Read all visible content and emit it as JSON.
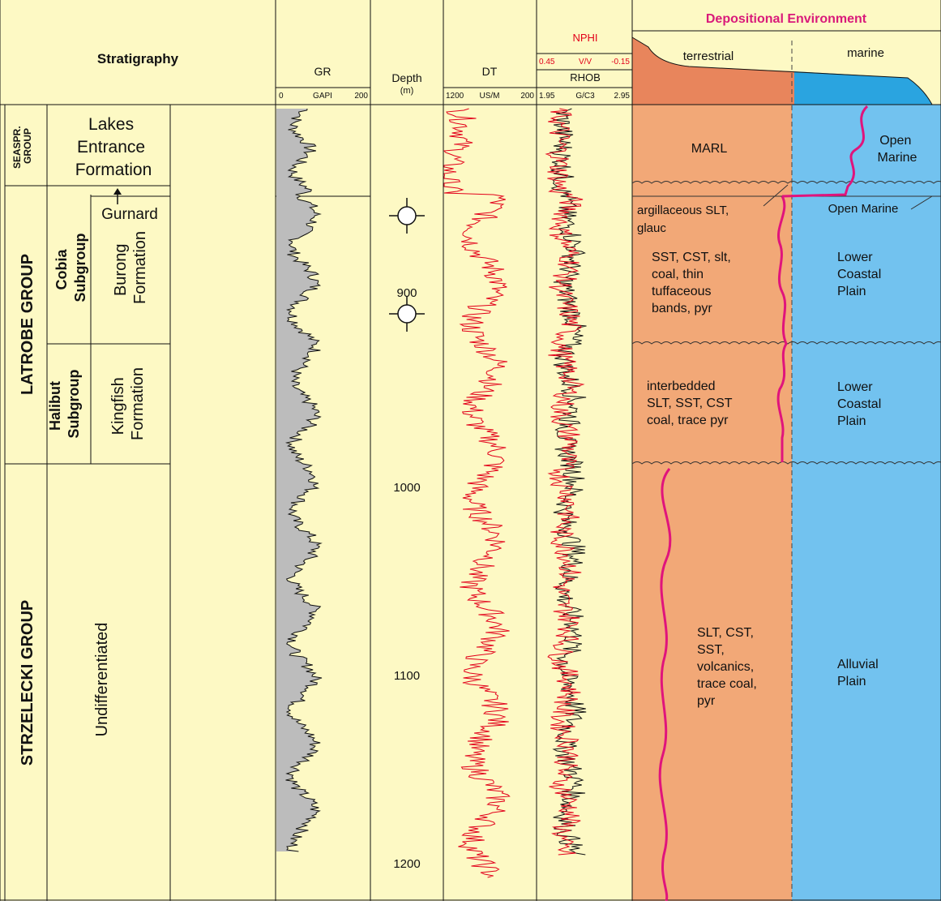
{
  "colors": {
    "panel": "#fdf9c4",
    "gr_fill": "#bcbcbc",
    "log_red": "#e2001a",
    "terrestrial": "#f2a877",
    "terrestrial_dark": "#e8855c",
    "marine": "#72c2ef",
    "marine_dark": "#2aa4e0",
    "env_curve": "#e0147c",
    "title_pink": "#d91a7a"
  },
  "header": {
    "stratigraphy": "Stratigraphy",
    "gr": {
      "name": "GR",
      "min": "0",
      "unit": "GAPI",
      "max": "200"
    },
    "depth": {
      "name": "Depth",
      "unit": "(m)"
    },
    "dt": {
      "name": "DT",
      "min": "1200",
      "unit": "US/M",
      "max": "200"
    },
    "nphi": {
      "name": "NPHI",
      "min": "0.45",
      "unit": "V/V",
      "max": "-0.15"
    },
    "rhob": {
      "name": "RHOB",
      "min": "1.95",
      "unit": "G/C3",
      "max": "2.95"
    },
    "env_title": "Depositional Environment",
    "terrestrial": "terrestrial",
    "marine": "marine"
  },
  "groups": {
    "seaspray": [
      "SEASPR.",
      "GROUP"
    ],
    "latrobe": "LATROBE GROUP",
    "strzelecki": "STRZELECKI GROUP"
  },
  "subgroups": {
    "cobia": [
      "Cobia",
      "Subgroup"
    ],
    "halibut": [
      "Halibut",
      "Subgroup"
    ]
  },
  "formations": {
    "lakes_entrance": [
      "Lakes",
      "Entrance",
      "Formation"
    ],
    "gurnard": "Gurnard",
    "burong": [
      "Burong",
      "Formation"
    ],
    "kingfish": [
      "Kingfish",
      "Formation"
    ],
    "undifferentiated": "Undifferentiated"
  },
  "depth_ticks": [
    "900",
    "1000",
    "1100",
    "1200"
  ],
  "lithology": {
    "marl": [
      "MARL"
    ],
    "argillaceous": [
      "argillaceous SLT,",
      "glauc"
    ],
    "burong": [
      "SST, CST, slt,",
      "coal, thin",
      "tuffaceous",
      "bands, pyr"
    ],
    "kingfish": [
      "interbedded",
      "SLT, SST, CST",
      "coal, trace pyr"
    ],
    "strzelecki": [
      "SLT, CST,",
      "SST,",
      "volcanics,",
      "trace coal,",
      "pyr"
    ]
  },
  "environments": {
    "open_marine_top": [
      "Open",
      "Marine"
    ],
    "open_marine_mid": "Open Marine",
    "lower_coastal_1": [
      "Lower",
      "Coastal",
      "Plain"
    ],
    "lower_coastal_2": [
      "Lower",
      "Coastal",
      "Plain"
    ],
    "alluvial": [
      "Alluvial",
      "Plain"
    ]
  }
}
